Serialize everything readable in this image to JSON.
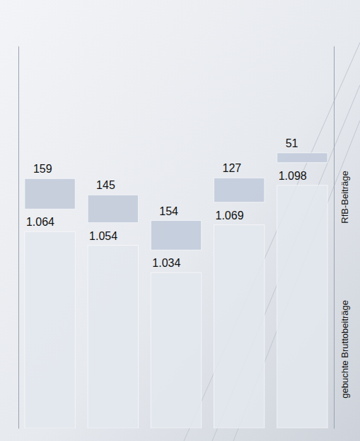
{
  "chart_data": {
    "type": "bar",
    "categories": [
      null,
      null,
      null,
      null,
      null
    ],
    "series": [
      {
        "name": "gebuchte Bruttobeiträge",
        "color": "#e3e7ee",
        "values": [
          1064,
          1054,
          1034,
          1069,
          1098
        ],
        "value_labels": [
          "1.064",
          "1.054",
          "1.034",
          "1.069",
          "1.098"
        ]
      },
      {
        "name": "RfB-Beiträge",
        "color": "#c3ccdb",
        "axis": "y2",
        "values": [
          159,
          145,
          154,
          127,
          51
        ]
      }
    ],
    "ylim": [
      920,
      1200
    ],
    "y2lim": [
      0,
      2000
    ],
    "data_labels": true,
    "tick_labels": false,
    "legend": "right"
  }
}
